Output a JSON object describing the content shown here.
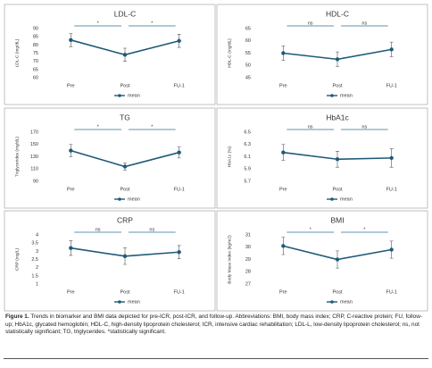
{
  "chart_data": [
    {
      "type": "line",
      "title": "LDL-C",
      "ylabel": "LDL-C (mg/dL)",
      "categories": [
        "Pre",
        "Post",
        "FU-1"
      ],
      "series": [
        {
          "name": "mean",
          "color": "#1f5a78",
          "values": [
            83,
            74,
            82.5
          ],
          "errors": [
            4,
            4,
            4
          ]
        }
      ],
      "ylim": [
        60,
        90
      ],
      "yticks": [
        60,
        65,
        70,
        75,
        80,
        85,
        90
      ],
      "significance": [
        "*",
        "*"
      ]
    },
    {
      "type": "line",
      "title": "HDL-C",
      "ylabel": "HDL-C (mg/dL)",
      "categories": [
        "Pre",
        "Post",
        "FU-1"
      ],
      "series": [
        {
          "name": "mean",
          "color": "#1f5a78",
          "values": [
            55,
            52.5,
            56.5
          ],
          "errors": [
            3,
            3,
            3
          ]
        }
      ],
      "ylim": [
        45,
        65
      ],
      "yticks": [
        45,
        50,
        55,
        60,
        65
      ],
      "significance": [
        "ns",
        "ns"
      ]
    },
    {
      "type": "line",
      "title": "TG",
      "ylabel": "Triglycerides (mg/dL)",
      "categories": [
        "Pre",
        "Post",
        "FU-1"
      ],
      "series": [
        {
          "name": "mean",
          "color": "#1f5a78",
          "values": [
            140,
            114,
            137
          ],
          "errors": [
            10,
            6,
            9
          ]
        }
      ],
      "ylim": [
        90,
        170
      ],
      "yticks": [
        90,
        110,
        130,
        150,
        170
      ],
      "significance": [
        "*",
        "*"
      ]
    },
    {
      "type": "line",
      "title": "HbA1c",
      "ylabel": "HbA1c (%)",
      "categories": [
        "Pre",
        "Post",
        "FU-1"
      ],
      "series": [
        {
          "name": "mean",
          "color": "#1f5a78",
          "values": [
            6.17,
            6.06,
            6.08
          ],
          "errors": [
            0.13,
            0.13,
            0.15
          ]
        }
      ],
      "ylim": [
        5.7,
        6.5
      ],
      "yticks": [
        5.7,
        5.9,
        6.1,
        6.3,
        6.5
      ],
      "significance": [
        "ns",
        "ns"
      ]
    },
    {
      "type": "line",
      "title": "CRP",
      "ylabel": "CRP (mg/L)",
      "categories": [
        "Pre",
        "Post",
        "FU-1"
      ],
      "series": [
        {
          "name": "mean",
          "color": "#1f5a78",
          "values": [
            3.2,
            2.7,
            2.95
          ],
          "errors": [
            0.45,
            0.5,
            0.4
          ]
        }
      ],
      "ylim": [
        1,
        4
      ],
      "yticks": [
        1,
        1.5,
        2,
        2.5,
        3,
        3.5,
        4
      ],
      "significance": [
        "ns",
        "ns"
      ]
    },
    {
      "type": "line",
      "title": "BMI",
      "ylabel": "Body Mass Index (kg/m2)",
      "categories": [
        "Pre",
        "Post",
        "FU-1"
      ],
      "series": [
        {
          "name": "mean",
          "color": "#1f5a78",
          "values": [
            30.1,
            29,
            29.8
          ],
          "errors": [
            0.7,
            0.7,
            0.7
          ]
        }
      ],
      "ylim": [
        27,
        31
      ],
      "yticks": [
        27,
        28,
        29,
        30,
        31
      ],
      "significance": [
        "*",
        "*"
      ]
    }
  ],
  "caption": {
    "label": "Figure 1.",
    "text": "Trends in biomarker and BMI data depicted for pre-ICR, post-ICR, and follow-up. Abbreviations: BMI, body mass index; CRP, C-reactive protein; FU, follow-up; HbA1c, glycated hemoglobin; HDL-C, high-density lipoprotein cholesterol; ICR, intensive cardiac rehabilitation; LDL-L, low-density lipoprotein cholesterol; ns, not statistically significant; TG, triglycerides. *statistically significant."
  }
}
